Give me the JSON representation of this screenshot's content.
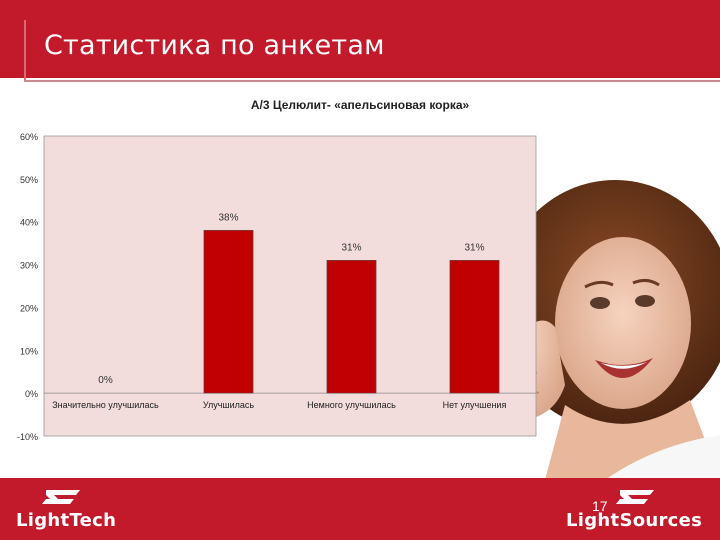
{
  "header": {
    "title": "Статистика по анкетам"
  },
  "chart_data": {
    "type": "bar",
    "title": "А/3 Целюлит- «апельсиновая корка»",
    "categories": [
      "Значительно улучшилась",
      "Улучшилась",
      "Немного улучшилась",
      "Нет улучшения"
    ],
    "values": [
      0,
      38,
      31,
      31
    ],
    "data_labels": [
      "0%",
      "38%",
      "31%",
      "31%"
    ],
    "ylim": [
      -10,
      60
    ],
    "yticks": [
      60,
      50,
      40,
      30,
      20,
      10,
      0,
      -10
    ],
    "ytick_labels": [
      "60%",
      "50%",
      "40%",
      "30%",
      "20%",
      "10%",
      "0%",
      "-10%"
    ],
    "xlabel": "",
    "ylabel": "",
    "legend": "none",
    "colors": {
      "bar": "#c00000",
      "plot_background": "#f3dcdc"
    }
  },
  "footer": {
    "logo_left": "LightTech",
    "logo_right": "LightSources",
    "page_number": "17"
  },
  "colors": {
    "brand_red": "#c21a2b"
  },
  "photo": {
    "icon": "woman-thumbs-up-photo"
  }
}
